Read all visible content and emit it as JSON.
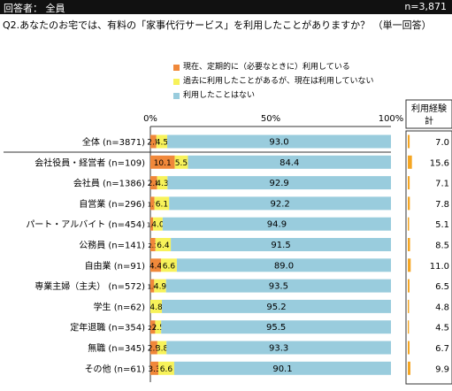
{
  "header": {
    "left": "回答者： 全員",
    "right": "n=3,871"
  },
  "question": "Q2.あなたのお宅では、有料の「家事代行サービス」を利用したことがありますか？ （単一回答）",
  "colors": {
    "regular": "#F0883A",
    "past": "#F7F25A",
    "never": "#99CCDD",
    "experience": "#F5A623",
    "header_bg": "#111111"
  },
  "chart_data": [
    {
      "type": "bar",
      "stacked": true,
      "orientation": "horizontal",
      "xlim": [
        0,
        100
      ],
      "x_ticks": [
        "0%",
        "50%",
        "100%"
      ],
      "legend_position": "top",
      "categories": [
        "全体 (n=3871)",
        "会社役員・経営者 (n=109)",
        "会社員 (n=1386)",
        "自営業 (n=296)",
        "パート・アルバイト (n=454)",
        "公務員 (n=141)",
        "自由業 (n=91)",
        "専業主婦（主夫） (n=572)",
        "学生 (n=62)",
        "定年退職 (n=354)",
        "無職 (n=345)",
        "その他 (n=61)"
      ],
      "series": [
        {
          "name": "現在、定期的に（必要なときに）利用している",
          "values": [
            2.5,
            10.1,
            2.8,
            1.7,
            1.1,
            2.1,
            4.4,
            1.6,
            0.0,
            2.0,
            2.9,
            3.3
          ]
        },
        {
          "name": "過去に利用したことがあるが、現在は利用していない",
          "values": [
            4.5,
            5.5,
            4.3,
            6.1,
            4.0,
            6.4,
            6.6,
            4.9,
            4.8,
            2.5,
            3.8,
            6.6
          ]
        },
        {
          "name": "利用したことはない",
          "values": [
            93.0,
            84.4,
            92.9,
            92.2,
            94.9,
            91.5,
            89.0,
            93.5,
            95.2,
            95.5,
            93.3,
            90.1
          ]
        }
      ],
      "labels": [
        [
          "2.5",
          "4.5",
          "93.0"
        ],
        [
          "10.1",
          "5.5",
          "84.4"
        ],
        [
          "2.8",
          "4.3",
          "92.9"
        ],
        [
          "1.7",
          "6.1",
          "92.2"
        ],
        [
          "1.1",
          "4.0",
          "94.9"
        ],
        [
          "2.1",
          "6.4",
          "91.5"
        ],
        [
          "4.4",
          "6.6",
          "89.0"
        ],
        [
          "1.6",
          "4.9",
          "93.5"
        ],
        [
          "",
          "4.8",
          "95.2"
        ],
        [
          "2.0",
          "2.5",
          "95.5"
        ],
        [
          "2.9",
          "3.8",
          "93.3"
        ],
        [
          "3.3",
          "6.6",
          "90.1"
        ]
      ]
    },
    {
      "type": "bar",
      "title": "利用経験計",
      "xlim": [
        0,
        100
      ],
      "values": [
        7.0,
        15.6,
        7.1,
        7.8,
        5.1,
        8.5,
        11.0,
        6.5,
        4.8,
        4.5,
        6.7,
        9.9
      ],
      "labels": [
        "7.0",
        "15.6",
        "7.1",
        "7.8",
        "5.1",
        "8.5",
        "11.0",
        "6.5",
        "4.8",
        "4.5",
        "6.7",
        "9.9"
      ]
    }
  ]
}
